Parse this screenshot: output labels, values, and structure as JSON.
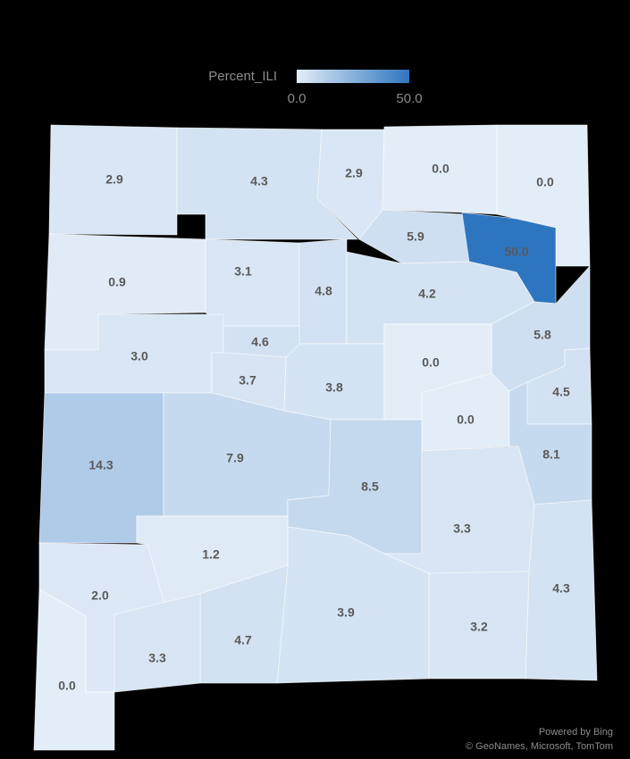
{
  "chart_data": {
    "type": "choropleth",
    "legend_title": "Percent_ILI",
    "scale": [
      {
        "value": 0,
        "label": "0.0"
      },
      {
        "value": 50,
        "label": "50.0"
      }
    ],
    "colors": [
      "#e3edf8",
      "#2e75c0"
    ],
    "values": [
      2.9,
      4.3,
      2.9,
      0,
      0,
      5.9,
      50,
      0.9,
      3.1,
      4.8,
      4.2,
      5.8,
      3.0,
      4.6,
      3.7,
      3.8,
      0,
      4.5,
      0,
      14.3,
      7.9,
      8.5,
      8.1,
      3.3,
      1.2,
      2.0,
      4.3,
      3.9,
      4.7,
      3.2,
      3.3,
      0
    ],
    "value_labels": [
      "2.9",
      "4.3",
      "2.9",
      "0.0",
      "0.0",
      "5.9",
      "50.0",
      "0.9",
      "3.1",
      "4.8",
      "4.2",
      "5.8",
      "3.0",
      "4.6",
      "3.7",
      "3.8",
      "0.0",
      "4.5",
      "0.0",
      "14.3",
      "7.9",
      "8.5",
      "8.1",
      "3.3",
      "1.2",
      "2.0",
      "4.3",
      "3.9",
      "4.7",
      "3.2",
      "3.3",
      "0.0"
    ],
    "attribution": [
      "Powered by Bing",
      "© GeoNames, Microsoft, TomTom"
    ]
  }
}
